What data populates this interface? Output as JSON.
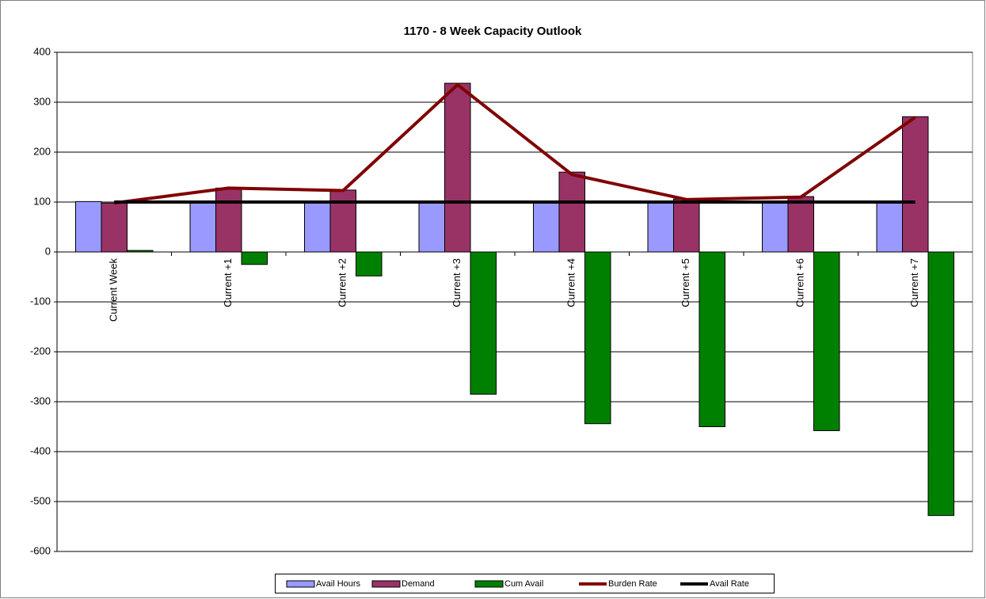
{
  "chart_data": {
    "type": "bar",
    "title": "1170 - 8 Week Capacity Outlook",
    "categories": [
      "Current Week",
      "Current +1",
      "Current +2",
      "Current +3",
      "Current +4",
      "Current +5",
      "Current +6",
      "Current +7"
    ],
    "series": [
      {
        "name": "Avail Hours",
        "type": "bar",
        "color": "#9999ff",
        "values": [
          101,
          100,
          100,
          100,
          100,
          100,
          100,
          100
        ]
      },
      {
        "name": "Demand",
        "type": "bar",
        "color": "#993366",
        "values": [
          98,
          128,
          124,
          338,
          160,
          106,
          111,
          271
        ]
      },
      {
        "name": "Cum Avail",
        "type": "bar",
        "color": "#008000",
        "values": [
          3,
          -25,
          -48,
          -285,
          -344,
          -350,
          -358,
          -528
        ]
      },
      {
        "name": "Burden Rate",
        "type": "line",
        "color": "#800000",
        "values": [
          98,
          128,
          123,
          335,
          155,
          105,
          110,
          270
        ]
      },
      {
        "name": "Avail Rate",
        "type": "line",
        "color": "#000000",
        "values": [
          100,
          100,
          100,
          100,
          100,
          100,
          100,
          100
        ]
      }
    ],
    "ylim": [
      -600,
      400
    ],
    "yticks": [
      -600,
      -500,
      -400,
      -300,
      -200,
      -100,
      0,
      100,
      200,
      300,
      400
    ],
    "grid": true,
    "legend": "bottom"
  }
}
